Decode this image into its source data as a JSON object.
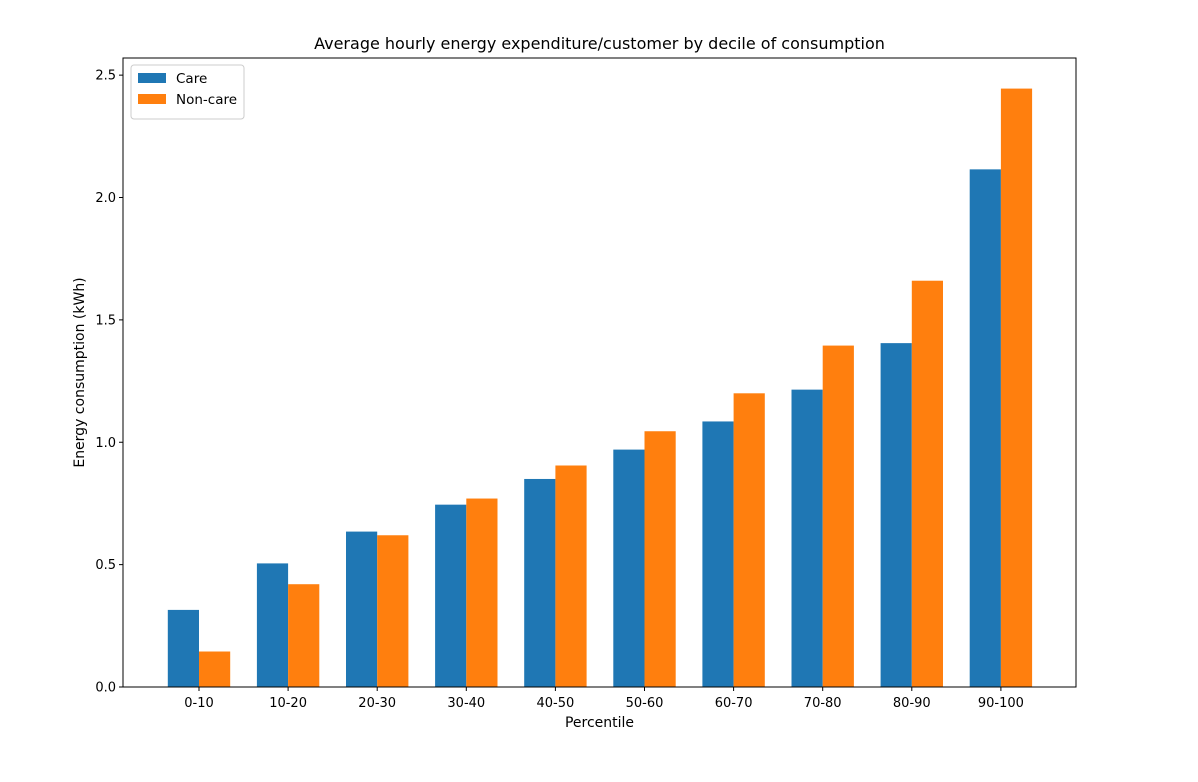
{
  "chart_data": {
    "type": "bar",
    "title": "Average hourly energy expenditure/customer by decile of consumption",
    "xlabel": "Percentile",
    "ylabel": "Energy consumption (kWh)",
    "categories": [
      "0-10",
      "10-20",
      "20-30",
      "30-40",
      "40-50",
      "50-60",
      "60-70",
      "70-80",
      "80-90",
      "90-100"
    ],
    "series": [
      {
        "name": "Care",
        "color": "#1f77b4",
        "values": [
          0.315,
          0.505,
          0.635,
          0.745,
          0.85,
          0.97,
          1.085,
          1.215,
          1.405,
          2.115
        ]
      },
      {
        "name": "Non-care",
        "color": "#ff7f0e",
        "values": [
          0.145,
          0.42,
          0.62,
          0.77,
          0.905,
          1.045,
          1.2,
          1.395,
          1.66,
          2.445
        ]
      }
    ],
    "ylim": [
      0,
      2.57
    ],
    "yticks": [
      "0.0",
      "0.5",
      "1.0",
      "1.5",
      "2.0",
      "2.5"
    ],
    "grid": false,
    "legend_position": "top-left"
  }
}
